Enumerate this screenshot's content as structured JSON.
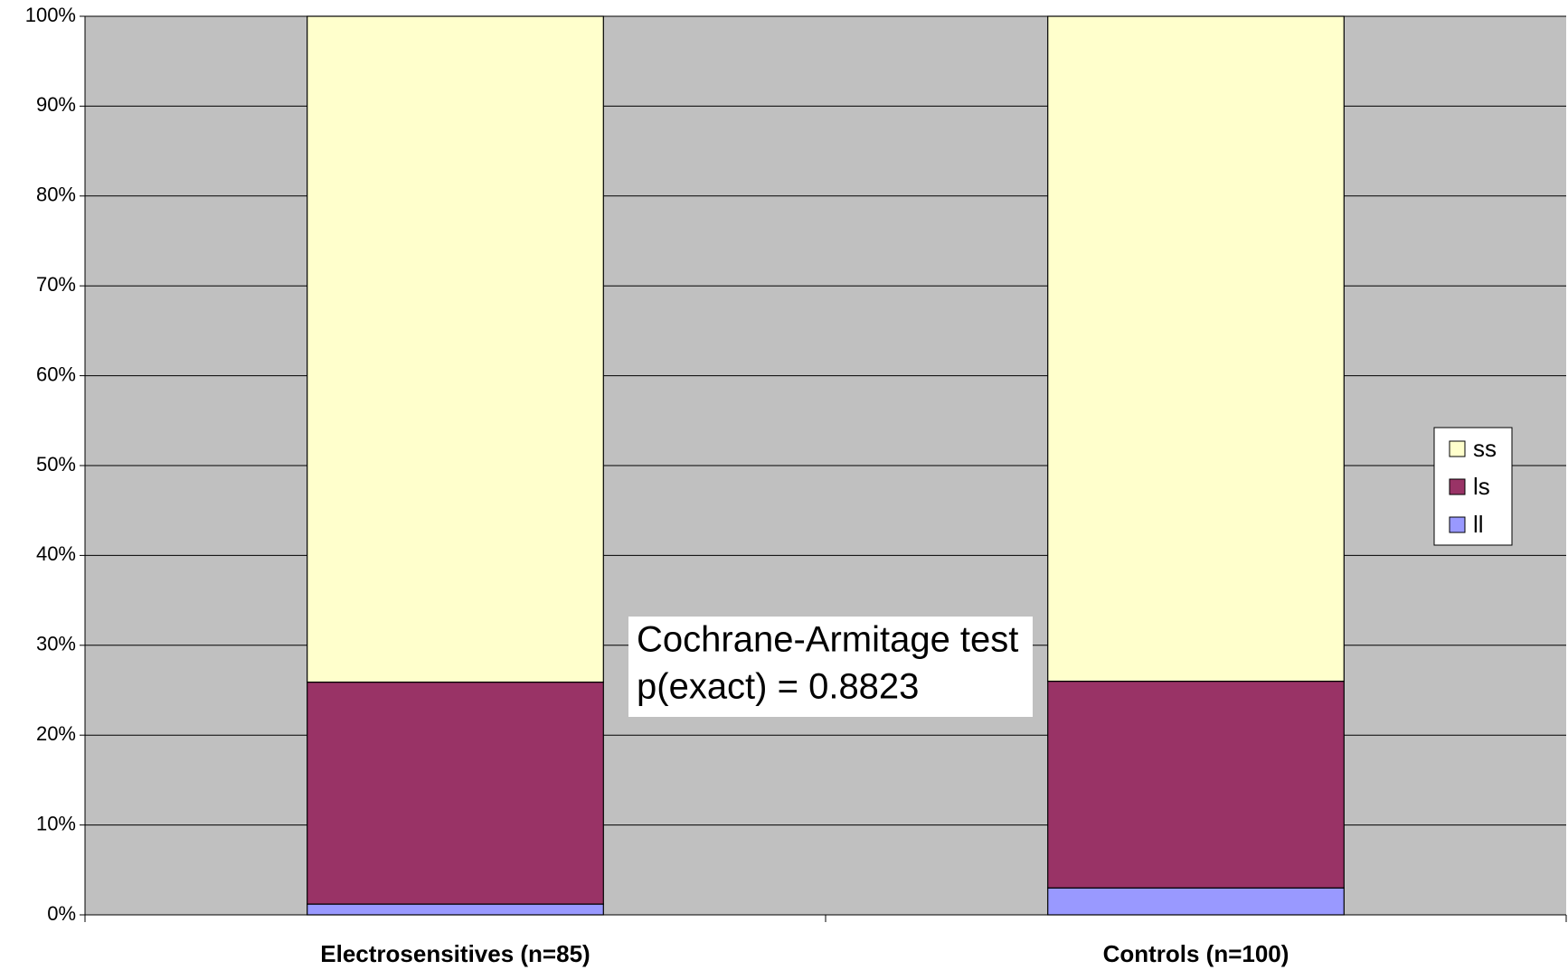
{
  "chart_data": {
    "type": "stacked_bar",
    "categories": [
      "Electrosensitives (n=85)",
      "Controls (n=100)"
    ],
    "series": [
      {
        "name": "ll",
        "color": "#9999ff",
        "values": [
          1.2,
          3
        ]
      },
      {
        "name": "ls",
        "color": "#993366",
        "values": [
          24.7,
          23
        ]
      },
      {
        "name": "ss",
        "color": "#ffffcc",
        "values": [
          74.1,
          74
        ]
      }
    ],
    "ylim": [
      0,
      100
    ],
    "yticks": [
      {
        "value": 0,
        "label": "0%"
      },
      {
        "value": 10,
        "label": "10%"
      },
      {
        "value": 20,
        "label": "20%"
      },
      {
        "value": 30,
        "label": "30%"
      },
      {
        "value": 40,
        "label": "40%"
      },
      {
        "value": 50,
        "label": "50%"
      },
      {
        "value": 60,
        "label": "60%"
      },
      {
        "value": 70,
        "label": "70%"
      },
      {
        "value": 80,
        "label": "80%"
      },
      {
        "value": 90,
        "label": "90%"
      },
      {
        "value": 100,
        "label": "100%"
      }
    ],
    "grid": true,
    "plot_background": "#c0c0c0",
    "legend": "right",
    "annotation": [
      "Cochrane-Armitage test",
      "p(exact) = 0.8823"
    ]
  }
}
